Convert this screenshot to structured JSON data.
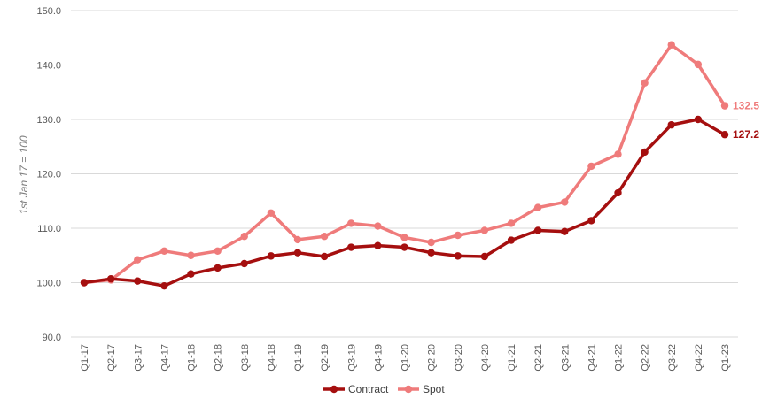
{
  "chart_data": {
    "type": "line",
    "title": "",
    "xlabel": "",
    "ylabel": "1st Jan 17 = 100",
    "ylim": [
      90,
      150
    ],
    "yticks": [
      "90.0",
      "100.0",
      "110.0",
      "120.0",
      "130.0",
      "140.0",
      "150.0"
    ],
    "grid": "horizontal",
    "legend_position": "bottom-center",
    "categories": [
      "Q1-17",
      "Q2-17",
      "Q3-17",
      "Q4-17",
      "Q1-18",
      "Q2-18",
      "Q3-18",
      "Q4-18",
      "Q1-19",
      "Q2-19",
      "Q3-19",
      "Q4-19",
      "Q1-20",
      "Q2-20",
      "Q3-20",
      "Q4-20",
      "Q1-21",
      "Q2-21",
      "Q3-21",
      "Q4-21",
      "Q1-22",
      "Q2-22",
      "Q3-22",
      "Q4-22",
      "Q1-23"
    ],
    "series": [
      {
        "name": "Contract",
        "color": "#a50f0f",
        "values": [
          100.0,
          100.7,
          100.3,
          99.4,
          101.6,
          102.7,
          103.5,
          104.9,
          105.5,
          104.8,
          106.5,
          106.8,
          106.5,
          105.5,
          104.9,
          104.8,
          107.8,
          109.6,
          109.4,
          111.4,
          116.5,
          124.0,
          129.0,
          130.0,
          127.2
        ],
        "end_label": "127.2"
      },
      {
        "name": "Spot",
        "color": "#ef7b7b",
        "values": [
          100.0,
          100.5,
          104.2,
          105.8,
          105.0,
          105.8,
          108.5,
          112.8,
          107.9,
          108.5,
          110.9,
          110.4,
          108.3,
          107.4,
          108.7,
          109.6,
          110.9,
          113.8,
          114.8,
          121.4,
          123.6,
          136.7,
          143.7,
          140.1,
          132.5
        ],
        "end_label": "132.5"
      }
    ]
  }
}
